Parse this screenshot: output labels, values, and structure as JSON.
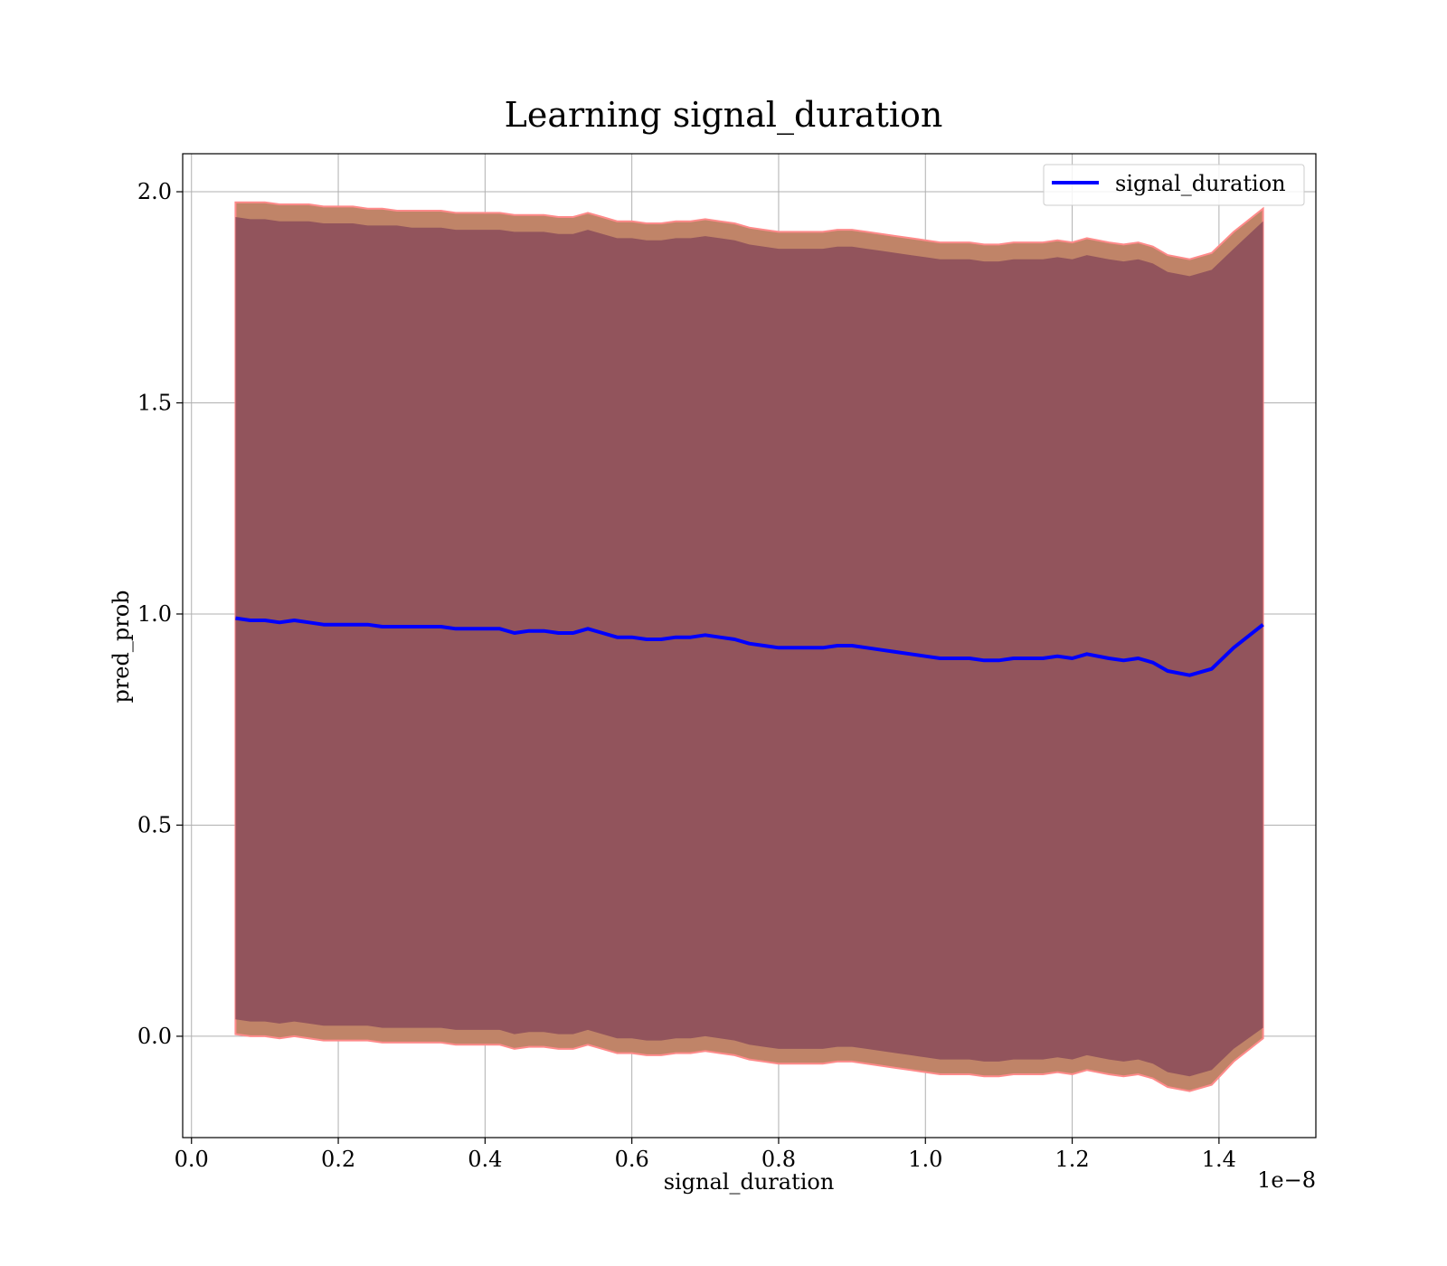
{
  "chart_data": {
    "type": "line",
    "title": "Learning signal_duration",
    "xlabel": "signal_duration",
    "ylabel": "pred_prob",
    "x_offset_text": "1e−8",
    "xlim": [
      -0.012,
      1.532
    ],
    "ylim": [
      -0.24,
      2.09
    ],
    "xticks": [
      0.0,
      0.2,
      0.4,
      0.6,
      0.8,
      1.0,
      1.2,
      1.4
    ],
    "xtick_labels": [
      "0.0",
      "0.2",
      "0.4",
      "0.6",
      "0.8",
      "1.0",
      "1.2",
      "1.4"
    ],
    "yticks": [
      0.0,
      0.5,
      1.0,
      1.5,
      2.0
    ],
    "ytick_labels": [
      "0.0",
      "0.5",
      "1.0",
      "1.5",
      "2.0"
    ],
    "grid": true,
    "legend": {
      "position": "top-right",
      "entries": [
        "signal_duration"
      ]
    },
    "colors": {
      "line": "#0000ff",
      "inner_band": "#8a4b5a",
      "outer_band": "#c08468",
      "band_edge": "#ff8a8a",
      "grid": "#b0b0b0"
    },
    "series": [
      {
        "name": "signal_duration",
        "x": [
          0.06,
          0.08,
          0.1,
          0.12,
          0.14,
          0.16,
          0.18,
          0.2,
          0.22,
          0.24,
          0.26,
          0.28,
          0.3,
          0.32,
          0.34,
          0.36,
          0.38,
          0.4,
          0.42,
          0.44,
          0.46,
          0.48,
          0.5,
          0.52,
          0.54,
          0.56,
          0.58,
          0.6,
          0.62,
          0.64,
          0.66,
          0.68,
          0.7,
          0.72,
          0.74,
          0.76,
          0.78,
          0.8,
          0.82,
          0.84,
          0.86,
          0.88,
          0.9,
          0.92,
          0.94,
          0.96,
          0.98,
          1.0,
          1.02,
          1.04,
          1.06,
          1.08,
          1.1,
          1.12,
          1.14,
          1.16,
          1.18,
          1.2,
          1.22,
          1.25,
          1.27,
          1.29,
          1.31,
          1.33,
          1.36,
          1.39,
          1.42,
          1.46
        ],
        "y": [
          0.99,
          0.985,
          0.985,
          0.98,
          0.985,
          0.98,
          0.975,
          0.975,
          0.975,
          0.975,
          0.97,
          0.97,
          0.97,
          0.97,
          0.97,
          0.965,
          0.965,
          0.965,
          0.965,
          0.955,
          0.96,
          0.96,
          0.955,
          0.955,
          0.965,
          0.955,
          0.945,
          0.945,
          0.94,
          0.94,
          0.945,
          0.945,
          0.95,
          0.945,
          0.94,
          0.93,
          0.925,
          0.92,
          0.92,
          0.92,
          0.92,
          0.925,
          0.925,
          0.92,
          0.915,
          0.91,
          0.905,
          0.9,
          0.895,
          0.895,
          0.895,
          0.89,
          0.89,
          0.895,
          0.895,
          0.895,
          0.9,
          0.895,
          0.905,
          0.895,
          0.89,
          0.895,
          0.885,
          0.865,
          0.855,
          0.87,
          0.92,
          0.975
        ],
        "band_inner_upper": [
          1.94,
          1.935,
          1.935,
          1.93,
          1.93,
          1.93,
          1.925,
          1.925,
          1.925,
          1.92,
          1.92,
          1.92,
          1.915,
          1.915,
          1.915,
          1.91,
          1.91,
          1.91,
          1.91,
          1.905,
          1.905,
          1.905,
          1.9,
          1.9,
          1.91,
          1.9,
          1.89,
          1.89,
          1.885,
          1.885,
          1.89,
          1.89,
          1.895,
          1.89,
          1.885,
          1.875,
          1.87,
          1.865,
          1.865,
          1.865,
          1.865,
          1.87,
          1.87,
          1.865,
          1.86,
          1.855,
          1.85,
          1.845,
          1.84,
          1.84,
          1.84,
          1.835,
          1.835,
          1.84,
          1.84,
          1.84,
          1.845,
          1.84,
          1.85,
          1.84,
          1.835,
          1.84,
          1.83,
          1.81,
          1.8,
          1.815,
          1.865,
          1.93
        ],
        "band_inner_lower": [
          0.04,
          0.035,
          0.035,
          0.03,
          0.035,
          0.03,
          0.025,
          0.025,
          0.025,
          0.025,
          0.02,
          0.02,
          0.02,
          0.02,
          0.02,
          0.015,
          0.015,
          0.015,
          0.015,
          0.005,
          0.01,
          0.01,
          0.005,
          0.005,
          0.015,
          0.005,
          -0.005,
          -0.005,
          -0.01,
          -0.01,
          -0.005,
          -0.005,
          0.0,
          -0.005,
          -0.01,
          -0.02,
          -0.025,
          -0.03,
          -0.03,
          -0.03,
          -0.03,
          -0.025,
          -0.025,
          -0.03,
          -0.035,
          -0.04,
          -0.045,
          -0.05,
          -0.055,
          -0.055,
          -0.055,
          -0.06,
          -0.06,
          -0.055,
          -0.055,
          -0.055,
          -0.05,
          -0.055,
          -0.045,
          -0.055,
          -0.06,
          -0.055,
          -0.065,
          -0.085,
          -0.095,
          -0.08,
          -0.03,
          0.02
        ],
        "band_outer_upper": [
          1.975,
          1.975,
          1.975,
          1.97,
          1.97,
          1.97,
          1.965,
          1.965,
          1.965,
          1.96,
          1.96,
          1.955,
          1.955,
          1.955,
          1.955,
          1.95,
          1.95,
          1.95,
          1.95,
          1.945,
          1.945,
          1.945,
          1.94,
          1.94,
          1.95,
          1.94,
          1.93,
          1.93,
          1.925,
          1.925,
          1.93,
          1.93,
          1.935,
          1.93,
          1.925,
          1.915,
          1.91,
          1.905,
          1.905,
          1.905,
          1.905,
          1.91,
          1.91,
          1.905,
          1.9,
          1.895,
          1.89,
          1.885,
          1.88,
          1.88,
          1.88,
          1.875,
          1.875,
          1.88,
          1.88,
          1.88,
          1.885,
          1.88,
          1.89,
          1.88,
          1.875,
          1.88,
          1.87,
          1.85,
          1.84,
          1.855,
          1.905,
          1.96
        ],
        "band_outer_lower": [
          0.005,
          0.0,
          0.0,
          -0.005,
          0.0,
          -0.005,
          -0.01,
          -0.01,
          -0.01,
          -0.01,
          -0.015,
          -0.015,
          -0.015,
          -0.015,
          -0.015,
          -0.02,
          -0.02,
          -0.02,
          -0.02,
          -0.03,
          -0.025,
          -0.025,
          -0.03,
          -0.03,
          -0.02,
          -0.03,
          -0.04,
          -0.04,
          -0.045,
          -0.045,
          -0.04,
          -0.04,
          -0.035,
          -0.04,
          -0.045,
          -0.055,
          -0.06,
          -0.065,
          -0.065,
          -0.065,
          -0.065,
          -0.06,
          -0.06,
          -0.065,
          -0.07,
          -0.075,
          -0.08,
          -0.085,
          -0.09,
          -0.09,
          -0.09,
          -0.095,
          -0.095,
          -0.09,
          -0.09,
          -0.09,
          -0.085,
          -0.09,
          -0.08,
          -0.09,
          -0.095,
          -0.09,
          -0.1,
          -0.12,
          -0.13,
          -0.115,
          -0.06,
          -0.005
        ]
      }
    ]
  }
}
